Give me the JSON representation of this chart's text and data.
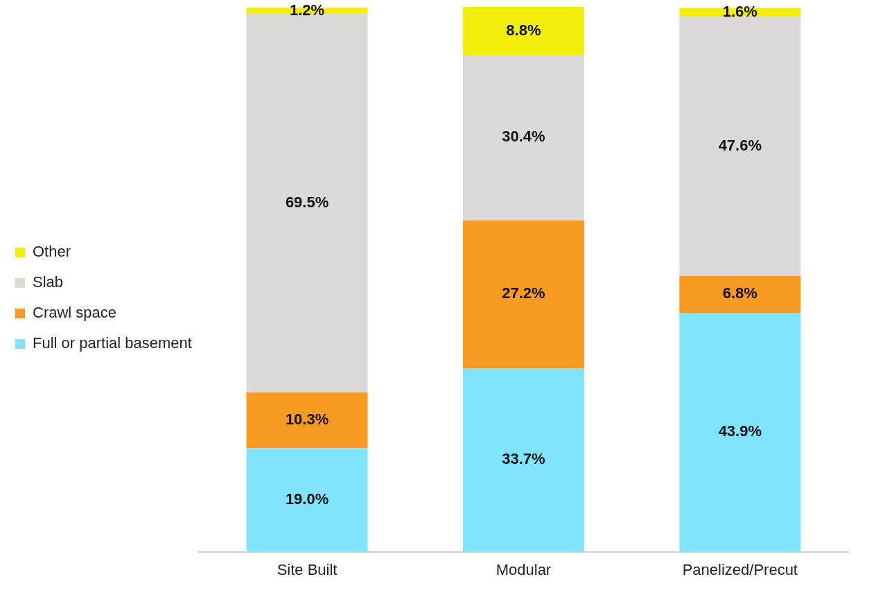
{
  "chart_data": {
    "type": "bar",
    "stacked": true,
    "categories": [
      "Site Built",
      "Modular",
      "Panelized/Precut"
    ],
    "series": [
      {
        "name": "Full or partial basement",
        "color": "#80e4fc",
        "values": [
          19.0,
          33.7,
          43.9
        ],
        "value_labels": [
          "19.0%",
          "33.7%",
          "43.9%"
        ]
      },
      {
        "name": "Crawl space",
        "color": "#f99a22",
        "values": [
          10.3,
          27.2,
          6.8
        ],
        "value_labels": [
          "10.3%",
          "27.2%",
          "6.8%"
        ]
      },
      {
        "name": "Slab",
        "color": "#dcdad6",
        "values": [
          69.5,
          30.4,
          47.6
        ],
        "value_labels": [
          "69.5%",
          "30.4%",
          "47.6%"
        ]
      },
      {
        "name": "Other",
        "color": "#f4ee0c",
        "values": [
          1.2,
          8.8,
          1.6
        ],
        "value_labels": [
          "1.2%",
          "8.8%",
          "1.6%"
        ]
      }
    ],
    "legend": "left",
    "grid": false,
    "tick_labels": "x"
  }
}
